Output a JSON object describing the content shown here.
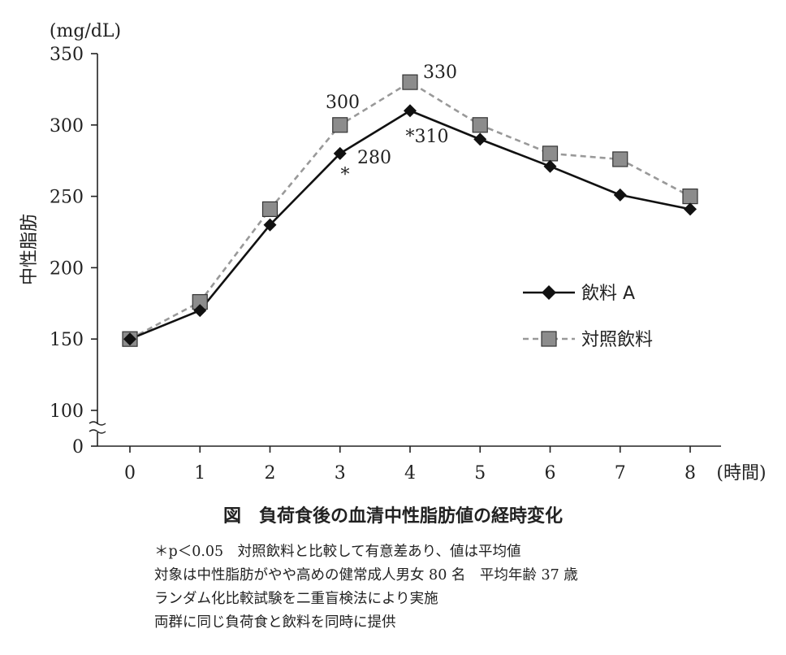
{
  "chart_data": {
    "type": "line",
    "title": "",
    "ylabel": "中性脂肪",
    "y_unit": "(mg/dL)",
    "x_unit": "(時間)",
    "ylim": [
      100,
      350
    ],
    "y_broken_axis_zero": "0",
    "y_ticks": [
      100,
      150,
      200,
      250,
      300,
      350
    ],
    "categories": [
      "0",
      "1",
      "2",
      "3",
      "4",
      "5",
      "6",
      "7",
      "8"
    ],
    "grid": false,
    "legend_position": "right",
    "series": [
      {
        "name": "飲料 A",
        "style": "solid",
        "marker": "diamond",
        "color": "#111111",
        "values": [
          150,
          170,
          230,
          280,
          310,
          290,
          271,
          251,
          241
        ]
      },
      {
        "name": "対照飲料",
        "style": "dashed",
        "marker": "square",
        "color": "#999999",
        "values": [
          150,
          176,
          241,
          300,
          330,
          300,
          280,
          276,
          250
        ]
      }
    ],
    "annotations": {
      "ctrl_3": "300",
      "ctrl_4": "330",
      "a_3_star": "*",
      "a_3_value": "280",
      "a_4": "*310"
    }
  },
  "caption": "図　負荷食後の血清中性脂肪値の経時変化",
  "notes": [
    "＊p＜0.05　対照飲料と比較して有意差あり、値は平均値",
    "対象は中性脂肪がやや高めの健常成人男女 80 名　平均年齢 37 歳",
    "ランダム化比較試験を二重盲検法により実施",
    "両群に同じ負荷食と飲料を同時に提供"
  ]
}
